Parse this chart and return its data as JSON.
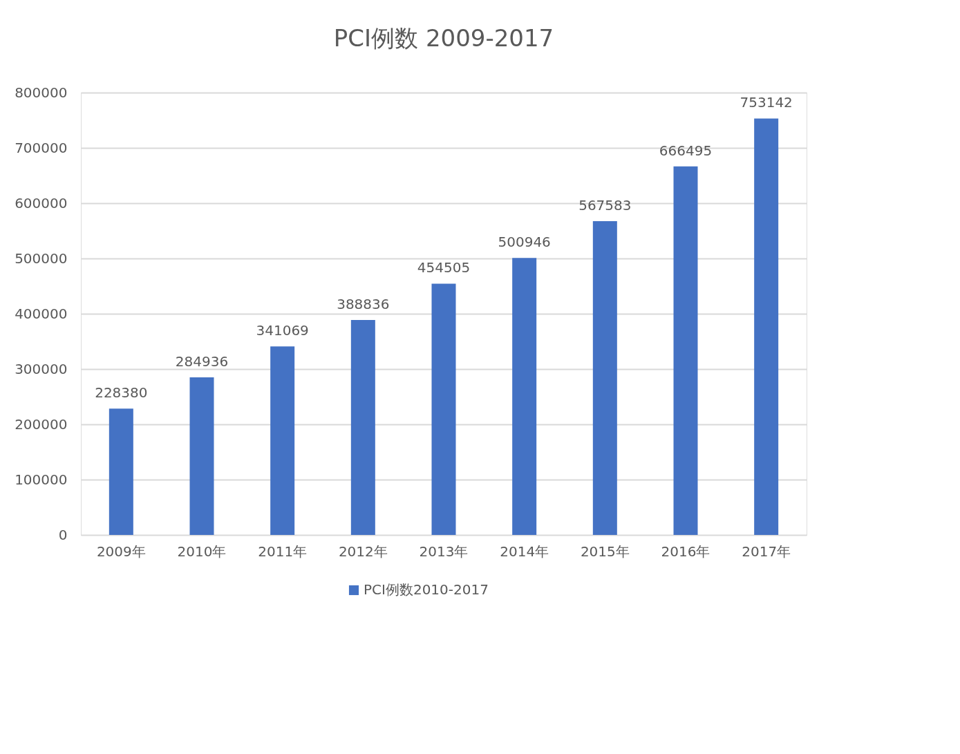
{
  "chart_data": {
    "type": "bar",
    "title": "PCI例数 2009-2017",
    "categories": [
      "2009年",
      "2010年",
      "2011年",
      "2012年",
      "2013年",
      "2014年",
      "2015年",
      "2016年",
      "2017年"
    ],
    "series": [
      {
        "name": "PCI例数2010-2017",
        "color": "#4472c4",
        "values": [
          228380,
          284936,
          341069,
          388836,
          454505,
          500946,
          567583,
          666495,
          753142
        ]
      }
    ],
    "ylim": [
      0,
      800000
    ],
    "yticks": [
      0,
      100000,
      200000,
      300000,
      400000,
      500000,
      600000,
      700000,
      800000
    ],
    "grid": "y",
    "legend": "bottom",
    "data_labels": true
  }
}
